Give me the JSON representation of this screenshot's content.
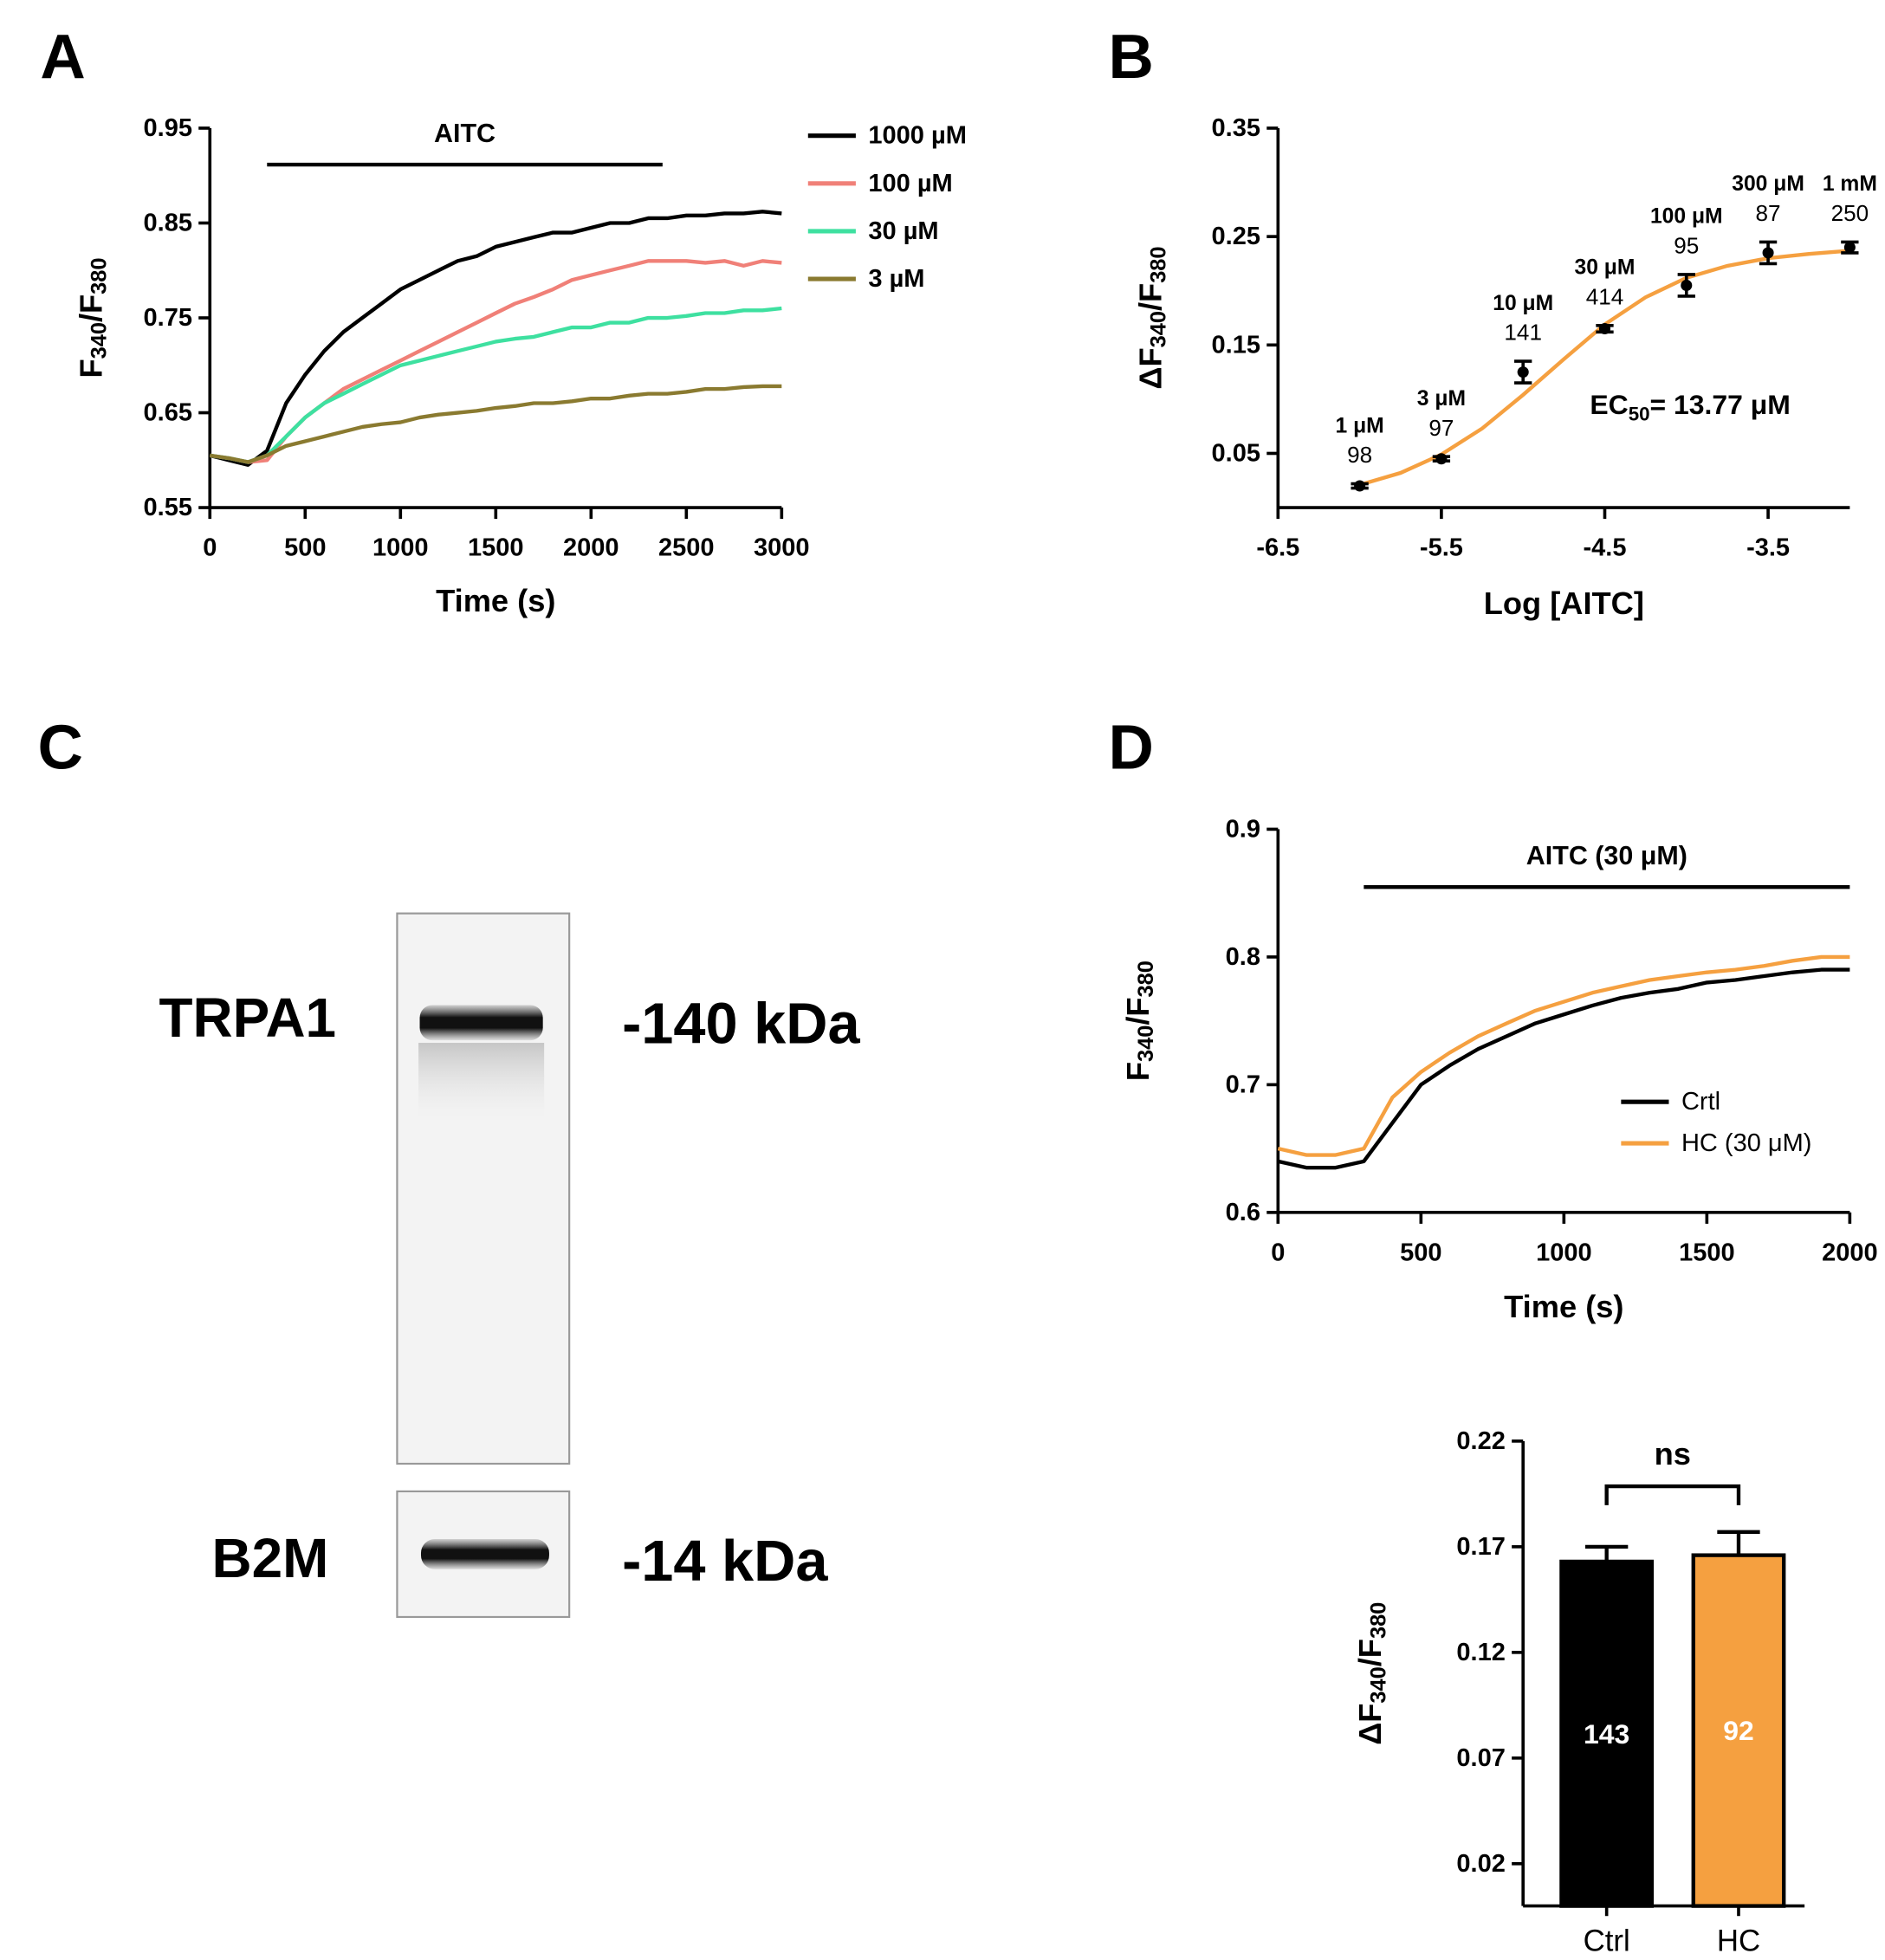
{
  "panels": [
    "A",
    "B",
    "C",
    "D"
  ],
  "chart_data": [
    {
      "type": "line",
      "x": [
        0,
        100,
        200,
        300,
        400,
        500,
        600,
        700,
        800,
        900,
        1000,
        1100,
        1200,
        1300,
        1400,
        1500,
        1600,
        1700,
        1800,
        1900,
        2000,
        2100,
        2200,
        2300,
        2400,
        2500,
        2600,
        2700,
        2800,
        2900,
        3000
      ],
      "xlim": [
        0,
        3000
      ],
      "xticks": [
        0,
        500,
        1000,
        1500,
        2000,
        2500,
        3000
      ],
      "ylim": [
        0.55,
        0.95
      ],
      "yticks": [
        0.55,
        0.65,
        0.75,
        0.85,
        0.95
      ],
      "x_label": "Time (s)",
      "y_label": [
        "F",
        "340",
        "/F",
        "380"
      ],
      "annotation": "AITC",
      "annotation_span": [
        300,
        2375
      ],
      "series": [
        {
          "name": "1000 µM",
          "color": "#000000",
          "values": [
            0.605,
            0.6,
            0.595,
            0.61,
            0.66,
            0.69,
            0.715,
            0.735,
            0.75,
            0.765,
            0.78,
            0.79,
            0.8,
            0.81,
            0.815,
            0.825,
            0.83,
            0.835,
            0.84,
            0.84,
            0.845,
            0.85,
            0.85,
            0.855,
            0.855,
            0.858,
            0.858,
            0.86,
            0.86,
            0.862,
            0.86
          ]
        },
        {
          "name": "100 µM",
          "color": "#f08078",
          "values": [
            0.605,
            0.602,
            0.598,
            0.6,
            0.625,
            0.645,
            0.66,
            0.675,
            0.685,
            0.695,
            0.705,
            0.715,
            0.725,
            0.735,
            0.745,
            0.755,
            0.765,
            0.772,
            0.78,
            0.79,
            0.795,
            0.8,
            0.805,
            0.81,
            0.81,
            0.81,
            0.808,
            0.81,
            0.805,
            0.81,
            0.808
          ]
        },
        {
          "name": "30 µM",
          "color": "#3ee0a0",
          "values": [
            0.605,
            0.602,
            0.598,
            0.605,
            0.625,
            0.645,
            0.66,
            0.67,
            0.68,
            0.69,
            0.7,
            0.705,
            0.71,
            0.715,
            0.72,
            0.725,
            0.728,
            0.73,
            0.735,
            0.74,
            0.74,
            0.745,
            0.745,
            0.75,
            0.75,
            0.752,
            0.755,
            0.755,
            0.758,
            0.758,
            0.76
          ]
        },
        {
          "name": "3 µM",
          "color": "#8a7a30",
          "values": [
            0.605,
            0.602,
            0.598,
            0.605,
            0.615,
            0.62,
            0.625,
            0.63,
            0.635,
            0.638,
            0.64,
            0.645,
            0.648,
            0.65,
            0.652,
            0.655,
            0.657,
            0.66,
            0.66,
            0.662,
            0.665,
            0.665,
            0.668,
            0.67,
            0.67,
            0.672,
            0.675,
            0.675,
            0.677,
            0.678,
            0.678
          ]
        }
      ]
    },
    {
      "type": "scatter",
      "x": [
        -6,
        -5.5,
        -5,
        -4.5,
        -4,
        -3.5,
        -3
      ],
      "values": [
        0.02,
        0.045,
        0.125,
        0.165,
        0.205,
        0.235,
        0.24
      ],
      "errors": [
        0.002,
        0.002,
        0.01,
        0.003,
        0.01,
        0.01,
        0.005
      ],
      "color": "#000000",
      "point_labels": [
        "1 μM",
        "3 μM",
        "10 μM",
        "30 μM",
        "100 μM",
        "300 μM",
        "1 mM"
      ],
      "n_labels": [
        "98",
        "97",
        "141",
        "414",
        "95",
        "87",
        "250"
      ],
      "fit": {
        "color": "#f5a040",
        "x": [
          -6,
          -5.75,
          -5.5,
          -5.25,
          -5,
          -4.75,
          -4.5,
          -4.25,
          -4,
          -3.75,
          -3.5,
          -3.25,
          -3
        ],
        "values": [
          0.021,
          0.032,
          0.049,
          0.073,
          0.104,
          0.137,
          0.169,
          0.194,
          0.212,
          0.223,
          0.23,
          0.234,
          0.237
        ]
      },
      "annotation": [
        "EC",
        "50",
        "= 13.77 μM"
      ],
      "xlim": [
        -6.5,
        -3
      ],
      "xticks": [
        -6.5,
        -5.5,
        -4.5,
        -3.5
      ],
      "ylim": [
        0,
        0.35
      ],
      "yticks": [
        0.05,
        0.15,
        0.25,
        0.35
      ],
      "x_label": "Log [AITC]",
      "y_label": [
        "ΔF",
        "340",
        "/F",
        "380"
      ]
    },
    {
      "type": "line",
      "x": [
        0,
        100,
        200,
        300,
        400,
        500,
        600,
        700,
        800,
        900,
        1000,
        1100,
        1200,
        1300,
        1400,
        1500,
        1600,
        1700,
        1800,
        1900,
        2000
      ],
      "xlim": [
        0,
        2000
      ],
      "xticks": [
        0,
        500,
        1000,
        1500,
        2000
      ],
      "ylim": [
        0.6,
        0.9
      ],
      "yticks": [
        0.6,
        0.7,
        0.8,
        0.9
      ],
      "x_label": "Time (s)",
      "y_label": [
        "F",
        "340",
        "/F",
        "380"
      ],
      "annotation": "AITC (30 μM)",
      "annotation_span": [
        300,
        2000
      ],
      "series": [
        {
          "name": "Crtl",
          "color": "#000000",
          "values": [
            0.64,
            0.635,
            0.635,
            0.64,
            0.67,
            0.7,
            0.715,
            0.728,
            0.738,
            0.748,
            0.755,
            0.762,
            0.768,
            0.772,
            0.775,
            0.78,
            0.782,
            0.785,
            0.788,
            0.79,
            0.79
          ]
        },
        {
          "name": "HC (30 μM)",
          "color": "#f5a040",
          "values": [
            0.65,
            0.645,
            0.645,
            0.65,
            0.69,
            0.71,
            0.725,
            0.738,
            0.748,
            0.758,
            0.765,
            0.772,
            0.777,
            0.782,
            0.785,
            0.788,
            0.79,
            0.793,
            0.797,
            0.8,
            0.8
          ]
        }
      ]
    },
    {
      "type": "bar",
      "categories": [
        "Ctrl",
        "HC"
      ],
      "values": [
        0.163,
        0.166
      ],
      "errors": [
        0.007,
        0.011
      ],
      "colors": [
        "#000000",
        "#f5a040"
      ],
      "n_labels": [
        "143",
        "92"
      ],
      "annotation": "ns",
      "ylim": [
        0,
        0.22
      ],
      "yticks": [
        0.02,
        0.07,
        0.12,
        0.17,
        0.22
      ],
      "y_label": [
        "ΔF",
        "340",
        "/F",
        "380"
      ]
    }
  ],
  "blot": {
    "bands": [
      {
        "label": "TRPA1",
        "size": "-140 kDa"
      },
      {
        "label": "B2M",
        "size": "-14 kDa"
      }
    ]
  }
}
